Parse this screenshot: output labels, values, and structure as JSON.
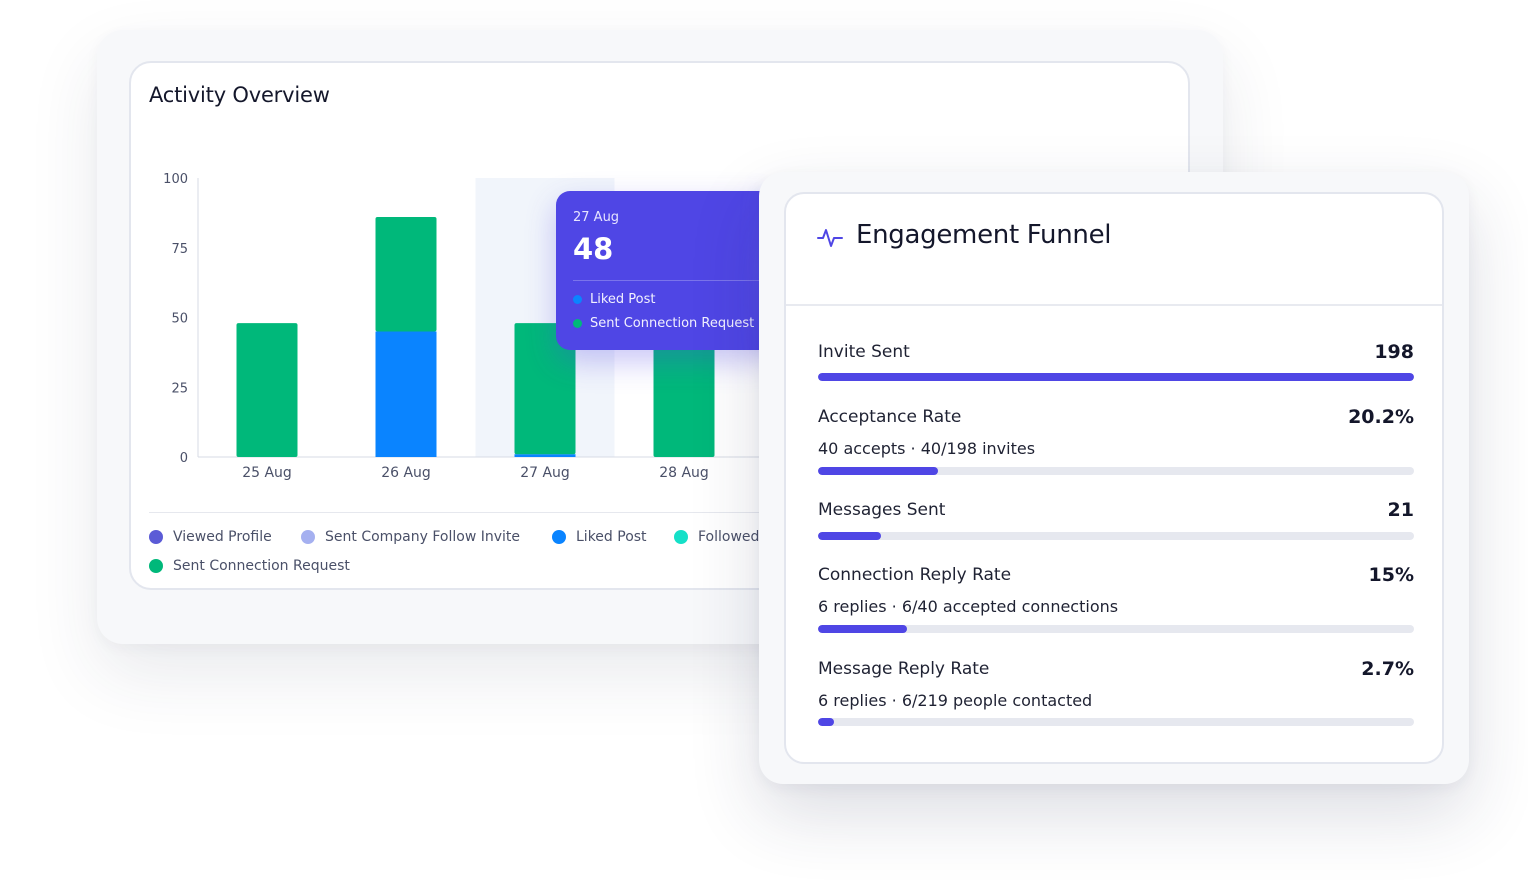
{
  "activity": {
    "title": "Activity Overview",
    "legend": [
      {
        "label": "Viewed Profile",
        "color": "#5b5bd6"
      },
      {
        "label": "Sent Company Follow Invite",
        "color": "#a5b0f0"
      },
      {
        "label": "Liked Post",
        "color": "#0a84ff"
      },
      {
        "label": "Followed",
        "color": "#15e0c8"
      },
      {
        "label": "Sent Connection Request",
        "color": "#00b87a"
      }
    ]
  },
  "chart_data": {
    "type": "bar",
    "stacked": true,
    "categories": [
      "25 Aug",
      "26 Aug",
      "27 Aug",
      "28 Aug"
    ],
    "yticks": [
      0,
      25,
      50,
      75,
      100
    ],
    "ylim": [
      0,
      100
    ],
    "grid": false,
    "highlighted_category": "27 Aug",
    "series": [
      {
        "name": "Liked Post",
        "color": "#0a84ff",
        "values": [
          0,
          45,
          1,
          0
        ]
      },
      {
        "name": "Sent Connection Request",
        "color": "#00b87a",
        "values": [
          48,
          41,
          47,
          48
        ]
      }
    ]
  },
  "tooltip": {
    "date": "27 Aug",
    "value": "48",
    "items": [
      {
        "label": "Liked Post",
        "color": "#0a84ff"
      },
      {
        "label": "Sent Connection Request",
        "color": "#00b87a"
      }
    ]
  },
  "funnel": {
    "title": "Engagement Funnel",
    "accent": "#4f46e5",
    "metrics": [
      {
        "label": "Invite Sent",
        "value": "198",
        "sub": "",
        "progress": 1.0
      },
      {
        "label": "Acceptance Rate",
        "value": "20.2%",
        "sub": "40 accepts · 40/198 invites",
        "progress": 0.202
      },
      {
        "label": "Messages Sent",
        "value": "21",
        "sub": "",
        "progress": 0.106
      },
      {
        "label": "Connection Reply Rate",
        "value": "15%",
        "sub": "6 replies · 6/40 accepted connections",
        "progress": 0.15
      },
      {
        "label": "Message Reply Rate",
        "value": "2.7%",
        "sub": "6 replies · 6/219 people contacted",
        "progress": 0.027
      }
    ]
  }
}
